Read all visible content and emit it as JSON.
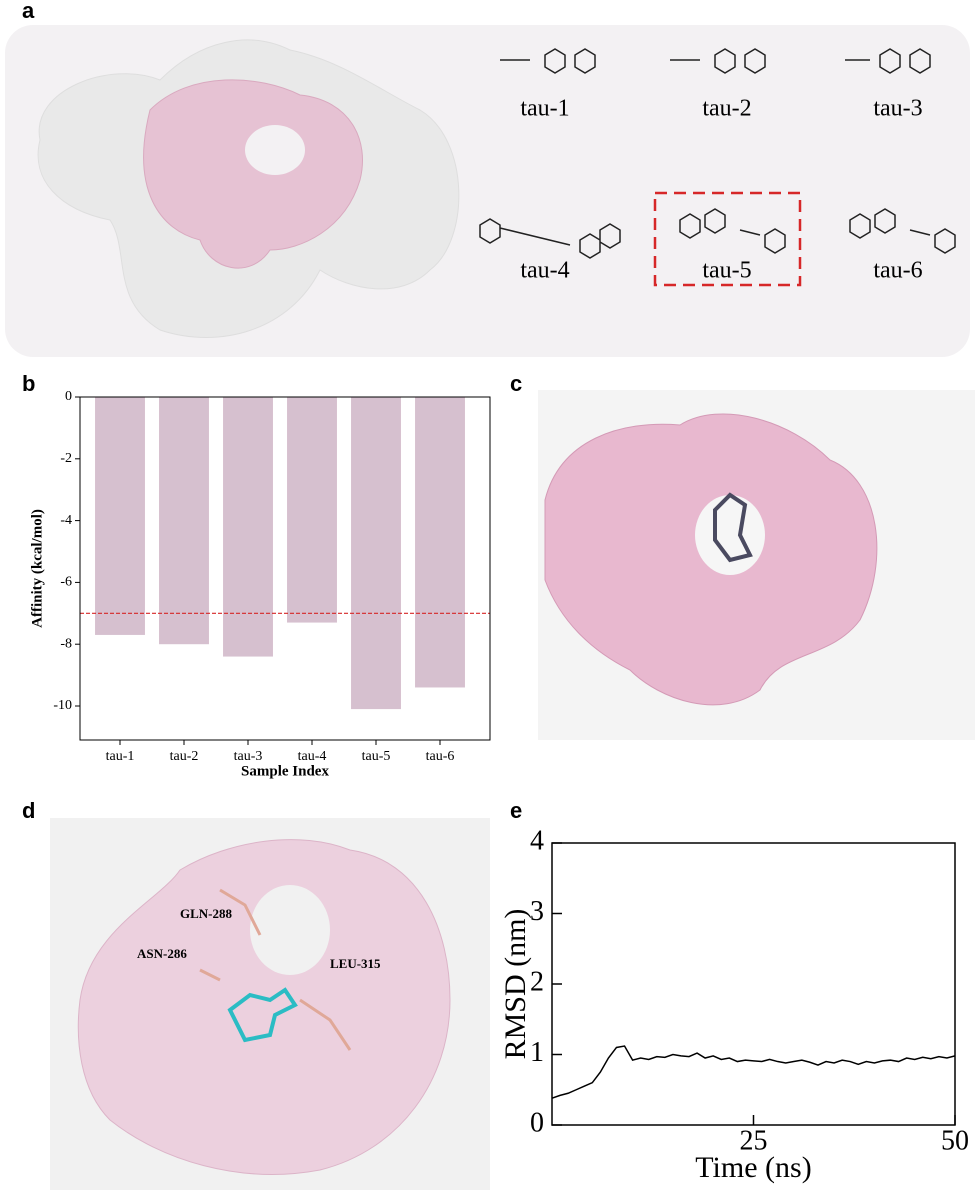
{
  "panel_labels": [
    "a",
    "b",
    "c",
    "d",
    "e"
  ],
  "panel_a": {
    "compounds": [
      "tau-1",
      "tau-2",
      "tau-3",
      "tau-4",
      "tau-5",
      "tau-6"
    ]
  },
  "panel_d": {
    "residues": [
      "GLN-288",
      "ASN-286",
      "LEU-315"
    ]
  },
  "chart_data": [
    {
      "type": "bar",
      "x_label": "Sample Index",
      "y_label": "Affinity (kcal/mol)",
      "categories": [
        "tau-1",
        "tau-2",
        "tau-3",
        "tau-4",
        "tau-5",
        "tau-6"
      ],
      "values": [
        -7.7,
        -8.0,
        -8.4,
        -7.3,
        -10.1,
        -9.4
      ],
      "color": "#d6c0cf",
      "ylim": [
        -11.1,
        0
      ],
      "yticks": [
        0,
        -2,
        -4,
        -6,
        -8,
        -10
      ],
      "reference_line": -7,
      "reference_color": "#d62728"
    },
    {
      "type": "line",
      "x_label": "Time (ns)",
      "y_label": "RMSD (nm)",
      "x": [
        0,
        1,
        2,
        3,
        4,
        5,
        6,
        7,
        8,
        9,
        10,
        11,
        12,
        13,
        14,
        15,
        16,
        17,
        18,
        19,
        20,
        21,
        22,
        23,
        24,
        25,
        26,
        27,
        28,
        29,
        30,
        31,
        32,
        33,
        34,
        35,
        36,
        37,
        38,
        39,
        40,
        41,
        42,
        43,
        44,
        45,
        46,
        47,
        48,
        49,
        50
      ],
      "series": [
        {
          "name": "RMSD",
          "color": "#000000",
          "values": [
            0.38,
            0.42,
            0.45,
            0.5,
            0.55,
            0.6,
            0.75,
            0.95,
            1.1,
            1.12,
            0.92,
            0.95,
            0.93,
            0.97,
            0.96,
            1.0,
            0.98,
            0.97,
            1.02,
            0.95,
            0.98,
            0.93,
            0.95,
            0.9,
            0.92,
            0.91,
            0.9,
            0.93,
            0.9,
            0.88,
            0.9,
            0.92,
            0.89,
            0.85,
            0.9,
            0.88,
            0.92,
            0.9,
            0.86,
            0.9,
            0.88,
            0.91,
            0.92,
            0.9,
            0.95,
            0.93,
            0.96,
            0.94,
            0.97,
            0.95,
            0.98
          ]
        }
      ],
      "xlim": [
        0,
        50
      ],
      "xticks": [
        25,
        50
      ],
      "ylim": [
        0,
        4
      ],
      "yticks": [
        0,
        1,
        2,
        3,
        4
      ]
    }
  ]
}
